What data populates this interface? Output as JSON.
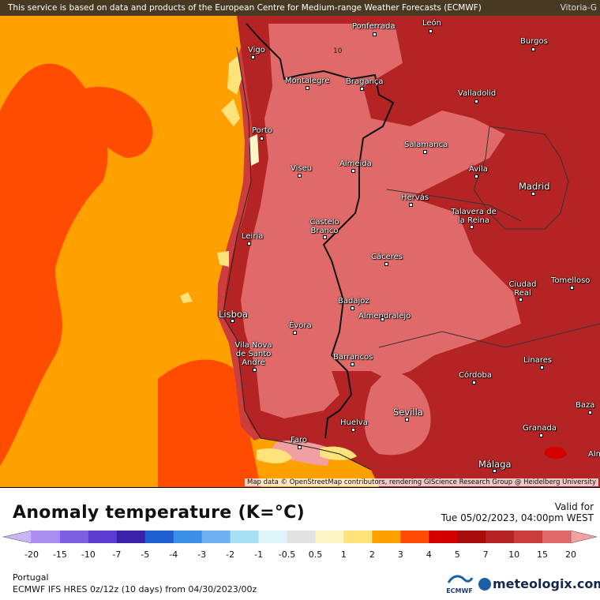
{
  "banner": {
    "text": "This service is based on data and products of the European Centre for Medium-range Weather Forecasts (ECMWF)",
    "corner_label": "Vitoria-G"
  },
  "map": {
    "attribution": "Map data © OpenStreetMap contributors, rendering GIScience Research Group @ Heidelberg University",
    "isoline_label": "10",
    "cities": [
      {
        "name": "Ponferrada"
      },
      {
        "name": "León"
      },
      {
        "name": "Burgos"
      },
      {
        "name": "Vigo"
      },
      {
        "name": "Montalegre"
      },
      {
        "name": "Bragança"
      },
      {
        "name": "Valladolid"
      },
      {
        "name": "Porto"
      },
      {
        "name": "Salamanca"
      },
      {
        "name": "Viseu"
      },
      {
        "name": "Almeida"
      },
      {
        "name": "Ávila"
      },
      {
        "name": "Madrid"
      },
      {
        "name": "Hervás"
      },
      {
        "name": "Talavera de la Reina"
      },
      {
        "name": "Castelo Branco"
      },
      {
        "name": "Leiria"
      },
      {
        "name": "Cáceres"
      },
      {
        "name": "Ciudad Real"
      },
      {
        "name": "Tomelloso"
      },
      {
        "name": "Badajoz"
      },
      {
        "name": "Almendralejo"
      },
      {
        "name": "Lisboa"
      },
      {
        "name": "Évora"
      },
      {
        "name": "Vila Nova de Santo André"
      },
      {
        "name": "Barrancos"
      },
      {
        "name": "Linares"
      },
      {
        "name": "Córdoba"
      },
      {
        "name": "Baza"
      },
      {
        "name": "Sevilla"
      },
      {
        "name": "Granada"
      },
      {
        "name": "Faro"
      },
      {
        "name": "Huelva"
      },
      {
        "name": "Málaga"
      },
      {
        "name": "Alm"
      }
    ]
  },
  "legend": {
    "title": "Anomaly temperature (K=°C)",
    "valid_label": "Valid for",
    "valid_time": "Tue 05/02/2023, 04:00pm WEST",
    "ticks": [
      "-20",
      "-15",
      "-10",
      "-7",
      "-5",
      "-4",
      "-3",
      "-2",
      "-1",
      "-0.5",
      "0.5",
      "1",
      "2",
      "3",
      "4",
      "5",
      "7",
      "10",
      "15",
      "20"
    ],
    "colors": [
      "#a98cf0",
      "#7b5fe0",
      "#5a3ed2",
      "#3a22a8",
      "#1f5fcf",
      "#3c8fe6",
      "#6fb0ee",
      "#a7e0f2",
      "#dff4f9",
      "#e2e2e2",
      "#fff6c8",
      "#fde37a",
      "#ff9f00",
      "#ff4c00",
      "#d40000",
      "#a80c0c",
      "#b42424",
      "#cc3e3e",
      "#e06a6a",
      "#f0a0a0"
    ],
    "region": "Portugal",
    "model_line": "ECMWF IFS HRES 0z/12z (10 days) from 04/30/2023/00z",
    "ecmwf_label": "ECMWF",
    "brand": "meteologix.com"
  }
}
